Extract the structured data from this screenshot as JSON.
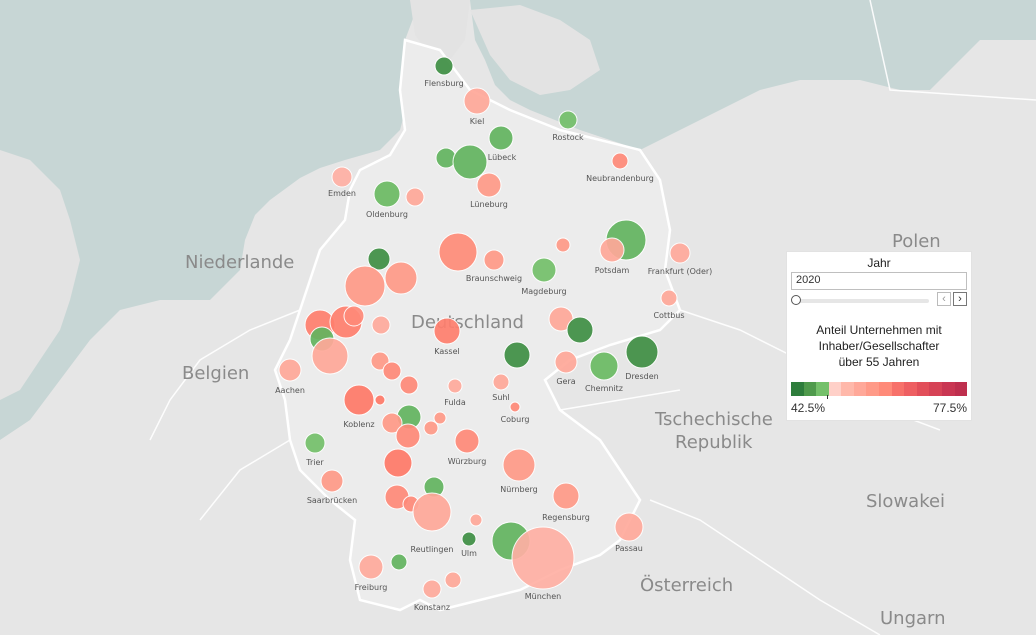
{
  "colors": {
    "water": "#c7d6d5",
    "land": "#e6e6e6",
    "germany": "#e9e9e9",
    "green": "#4f9a4c",
    "red": "#ff9a86"
  },
  "countries": [
    {
      "name": "Niederlande",
      "label": "Niederlande"
    },
    {
      "name": "Belgien",
      "label": "Belgien"
    },
    {
      "name": "Deutschland",
      "label": "Deutschland"
    },
    {
      "name": "Polen",
      "label": "Polen"
    },
    {
      "name": "Tschechische",
      "label": "Tschechische"
    },
    {
      "name": "Republik",
      "label": "Republik"
    },
    {
      "name": "Slowakei",
      "label": "Slowakei"
    },
    {
      "name": "Österreich",
      "label": "Österreich"
    },
    {
      "name": "Ungarn",
      "label": "Ungarn"
    }
  ],
  "cities": [
    {
      "name": "Flensburg",
      "color": "#3f8f44",
      "size": "small"
    },
    {
      "name": "Kiel",
      "color": "#ffa899",
      "size": "medium"
    },
    {
      "name": "Rostock",
      "color": "#74c06a",
      "size": "small"
    },
    {
      "name": "Lübeck",
      "color": "#63b45f",
      "size": "large"
    },
    {
      "name": "Emden",
      "color": "#ffb0a4",
      "size": "small"
    },
    {
      "name": "Neubrandenburg",
      "color": "#ff8a79",
      "size": "small"
    },
    {
      "name": "Oldenburg",
      "color": "#6bbb63",
      "size": "medium"
    },
    {
      "name": "Lüneburg",
      "color": "#ff9a88",
      "size": "medium"
    },
    {
      "name": "Potsdam",
      "color": "#ffa899",
      "size": "medium"
    },
    {
      "name": "Frankfurt (Oder)",
      "color": "#ffaa9c",
      "size": "small"
    },
    {
      "name": "Braunschweig",
      "color": "#ff8c78",
      "size": "large"
    },
    {
      "name": "Magdeburg",
      "color": "#74c06a",
      "size": "medium"
    },
    {
      "name": "Cottbus",
      "color": "#ffa899",
      "size": "small"
    },
    {
      "name": "Kassel",
      "color": "#ff7f6e",
      "size": "medium"
    },
    {
      "name": "Dresden",
      "color": "#3f8f44",
      "size": "large"
    },
    {
      "name": "Gera",
      "color": "#ffa899",
      "size": "medium"
    },
    {
      "name": "Chemnitz",
      "color": "#6bbb63",
      "size": "medium"
    },
    {
      "name": "Aachen",
      "color": "#ffa899",
      "size": "medium"
    },
    {
      "name": "Fulda",
      "color": "#ffaa9c",
      "size": "small"
    },
    {
      "name": "Suhl",
      "color": "#ffa899",
      "size": "small"
    },
    {
      "name": "Coburg",
      "color": "#ff8a79",
      "size": "small"
    },
    {
      "name": "Koblenz",
      "color": "#ff7a68",
      "size": "large"
    },
    {
      "name": "Trier",
      "color": "#74c06a",
      "size": "small"
    },
    {
      "name": "Würzburg",
      "color": "#ff8a79",
      "size": "medium"
    },
    {
      "name": "Nürnberg",
      "color": "#ff9a88",
      "size": "large"
    },
    {
      "name": "Saarbrücken",
      "color": "#ff9a88",
      "size": "medium"
    },
    {
      "name": "Regensburg",
      "color": "#ff9a88",
      "size": "medium"
    },
    {
      "name": "Reutlingen",
      "color": "#ffa899",
      "size": "large"
    },
    {
      "name": "Ulm",
      "color": "#3f8f44",
      "size": "small"
    },
    {
      "name": "Passau",
      "color": "#ffaa9c",
      "size": "medium"
    },
    {
      "name": "München",
      "color": "#ffb0a4",
      "size": "very large"
    },
    {
      "name": "Freiburg",
      "color": "#ffaa9c",
      "size": "medium"
    },
    {
      "name": "Konstanz",
      "color": "#ffaa9c",
      "size": "small"
    }
  ],
  "panel": {
    "year_title": "Jahr",
    "year_value": "2020",
    "prev_icon": "‹",
    "next_icon": "›",
    "legend_title_1": "Anteil Unternehmen mit",
    "legend_title_2": "Inhaber/Gesellschafter",
    "legend_title_3": "über 55 Jahren",
    "legend_min": "42.5%",
    "legend_max": "77.5%",
    "legend_colors": [
      "#2e7d3c",
      "#4f9a4c",
      "#74c06a",
      "#ffd0c8",
      "#ffb8aa",
      "#ffa899",
      "#ff9a88",
      "#ff8a79",
      "#f7716a",
      "#ee5f62",
      "#e24f5a",
      "#d64356",
      "#c93652",
      "#be2f4e"
    ]
  }
}
